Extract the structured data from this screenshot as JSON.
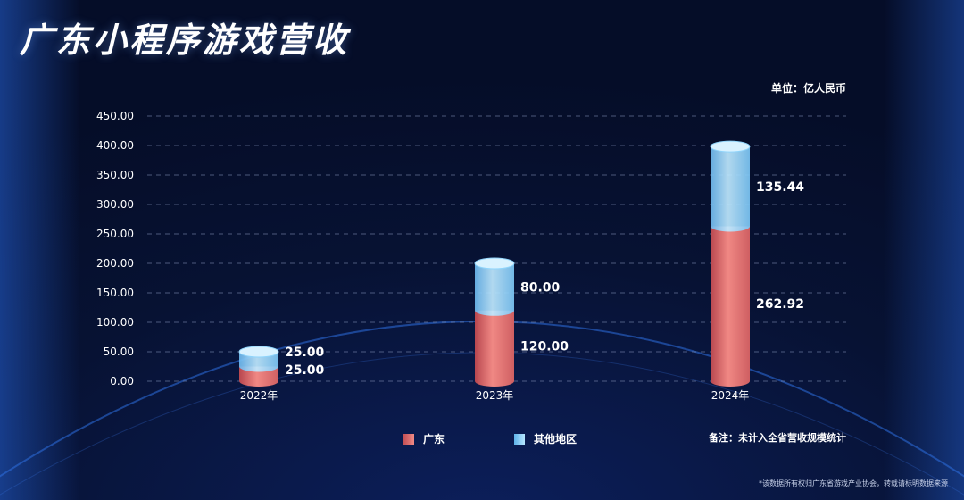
{
  "title": "广东小程序游戏营收",
  "unit": "单位：亿人民币",
  "note": "备注：未计入全省营收规模统计",
  "footer": "*该数据所有权归广东省游戏产业协会，转载请标明数据来源",
  "colors": {
    "guangdong": "#e8706f",
    "other": "#8fd4fb",
    "background": "#071233"
  },
  "chart_data": {
    "type": "bar",
    "stacked": true,
    "categories": [
      "2022年",
      "2023年",
      "2024年"
    ],
    "series": [
      {
        "name": "广东",
        "values": [
          25.0,
          120.0,
          262.92
        ],
        "labels": [
          "25.00",
          "120.00",
          "262.92"
        ]
      },
      {
        "name": "其他地区",
        "values": [
          25.0,
          80.0,
          135.44
        ],
        "labels": [
          "25.00",
          "80.00",
          "135.44"
        ]
      }
    ],
    "ylim": [
      0,
      450
    ],
    "yticks": [
      "0.00",
      "50.00",
      "100.00",
      "150.00",
      "200.00",
      "250.00",
      "300.00",
      "350.00",
      "400.00",
      "450.00"
    ],
    "grid": true,
    "legend_position": "bottom"
  }
}
